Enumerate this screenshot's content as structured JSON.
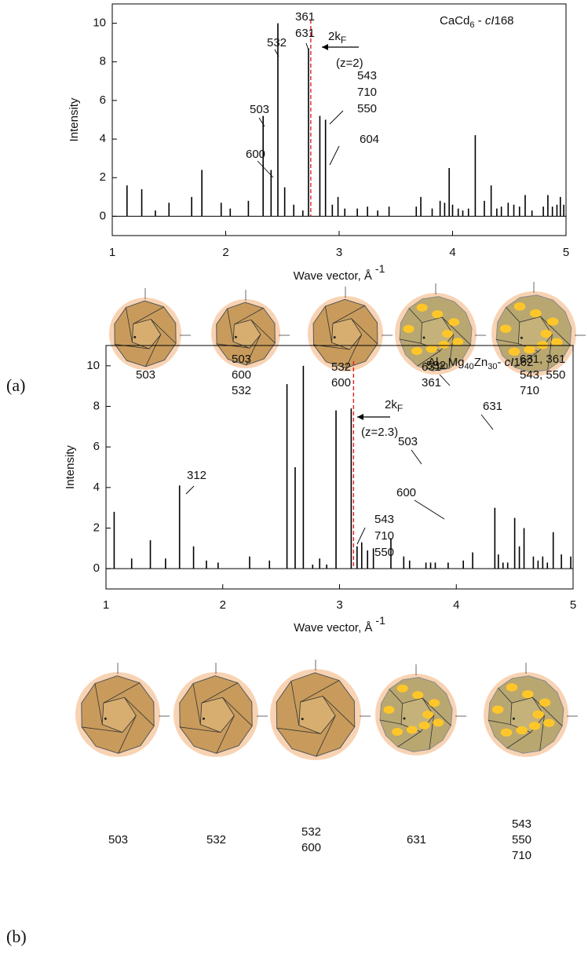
{
  "chart_data": [
    {
      "type": "stem",
      "title_parts": [
        {
          "text": "CaCd"
        },
        {
          "text": "6",
          "sub": true
        },
        {
          "text": " - "
        },
        {
          "text": "cI",
          "italic": true
        },
        {
          "text": "168"
        }
      ],
      "x_label": "Wave vector, Å",
      "x_label_sup": "-1",
      "y_label": "Intensity",
      "xlim": [
        1,
        5
      ],
      "ylim": [
        -1,
        11
      ],
      "xticks": [
        1,
        2,
        3,
        4,
        5
      ],
      "yticks": [
        0,
        2,
        4,
        6,
        8,
        10
      ],
      "color": "#000000",
      "x": [
        1.13,
        1.26,
        1.38,
        1.5,
        1.7,
        1.79,
        1.96,
        2.04,
        2.2,
        2.33,
        2.4,
        2.46,
        2.52,
        2.6,
        2.68,
        2.73,
        2.83,
        2.88,
        2.94,
        2.99,
        3.05,
        3.16,
        3.25,
        3.34,
        3.44,
        3.68,
        3.72,
        3.82,
        3.89,
        3.93,
        3.97,
        4.0,
        4.05,
        4.09,
        4.14,
        4.2,
        4.28,
        4.34,
        4.39,
        4.43,
        4.49,
        4.54,
        4.59,
        4.64,
        4.7,
        4.8,
        4.84,
        4.88,
        4.92,
        4.95,
        4.98
      ],
      "values": [
        1.6,
        1.4,
        0.3,
        0.7,
        1.0,
        2.4,
        0.7,
        0.4,
        0.8,
        5.2,
        2.4,
        10.0,
        1.5,
        0.6,
        0.3,
        8.7,
        5.2,
        5.0,
        0.6,
        1.0,
        0.4,
        0.4,
        0.5,
        0.3,
        0.5,
        0.5,
        1.0,
        0.4,
        0.8,
        0.7,
        2.5,
        0.6,
        0.4,
        0.3,
        0.4,
        4.2,
        0.8,
        1.6,
        0.4,
        0.5,
        0.7,
        0.6,
        0.5,
        1.1,
        0.3,
        0.5,
        1.1,
        0.5,
        0.6,
        1.0,
        0.6
      ],
      "fermi": {
        "x": 2.75,
        "color": "#e02020",
        "main": "2k",
        "sub": "F",
        "z": "(z=2)"
      },
      "annotations": [
        [
          "361",
          "631"
        ],
        [
          "532"
        ],
        [
          "503"
        ],
        [
          "600"
        ],
        [
          "543",
          "710",
          "550"
        ],
        [
          "604"
        ]
      ],
      "polyhedra": [
        [
          "503"
        ],
        [
          "503",
          "600",
          "532"
        ],
        [
          "532",
          "600"
        ],
        [
          "631",
          "361"
        ],
        [
          "631, 361",
          "543, 550",
          "710"
        ]
      ],
      "panel_label": "(a)"
    },
    {
      "type": "stem",
      "title_parts": [
        {
          "text": "Al"
        },
        {
          "text": "30",
          "sub": true
        },
        {
          "text": "Mg"
        },
        {
          "text": "40",
          "sub": true
        },
        {
          "text": "Zn"
        },
        {
          "text": "30",
          "sub": true
        },
        {
          "text": "- "
        },
        {
          "text": "cI",
          "italic": true
        },
        {
          "text": "162"
        }
      ],
      "x_label": "Wave vector, Å",
      "x_label_sup": "-1",
      "y_label": "Intensity",
      "xlim": [
        1,
        5
      ],
      "ylim": [
        -1,
        11
      ],
      "xticks": [
        1,
        2,
        3,
        4,
        5
      ],
      "yticks": [
        0,
        2,
        4,
        6,
        8,
        10
      ],
      "color": "#000000",
      "x": [
        1.07,
        1.22,
        1.38,
        1.51,
        1.63,
        1.75,
        1.86,
        1.96,
        2.23,
        2.4,
        2.55,
        2.62,
        2.69,
        2.77,
        2.83,
        2.89,
        2.97,
        3.1,
        3.15,
        3.19,
        3.24,
        3.29,
        3.44,
        3.55,
        3.6,
        3.74,
        3.78,
        3.82,
        3.93,
        4.06,
        4.14,
        4.33,
        4.36,
        4.4,
        4.44,
        4.5,
        4.54,
        4.58,
        4.66,
        4.7,
        4.74,
        4.78,
        4.83,
        4.9,
        4.98
      ],
      "values": [
        2.8,
        0.5,
        1.4,
        0.5,
        4.1,
        1.1,
        0.4,
        0.3,
        0.6,
        0.4,
        9.1,
        5.0,
        10.0,
        0.2,
        0.5,
        0.2,
        7.8,
        7.9,
        1.1,
        1.3,
        0.9,
        1.0,
        1.5,
        0.6,
        0.4,
        0.3,
        0.3,
        0.3,
        0.3,
        0.4,
        0.8,
        3.0,
        0.7,
        0.3,
        0.3,
        2.5,
        1.1,
        2.0,
        0.6,
        0.4,
        0.6,
        0.3,
        1.8,
        0.7,
        0.6
      ],
      "fermi": {
        "x": 3.12,
        "color": "#e02020",
        "main": "2k",
        "sub": "F",
        "z": "(z=2.3)"
      },
      "annotations": [
        [
          "532"
        ],
        [
          "631"
        ],
        [
          "503"
        ],
        [
          "600"
        ],
        [
          "312"
        ],
        [
          "543",
          "710",
          "550"
        ]
      ],
      "polyhedra": [
        [
          "503"
        ],
        [
          "532"
        ],
        [
          "532",
          "600"
        ],
        [
          "631"
        ],
        [
          "543",
          "550",
          "710"
        ]
      ],
      "panel_label": "(b)"
    }
  ]
}
